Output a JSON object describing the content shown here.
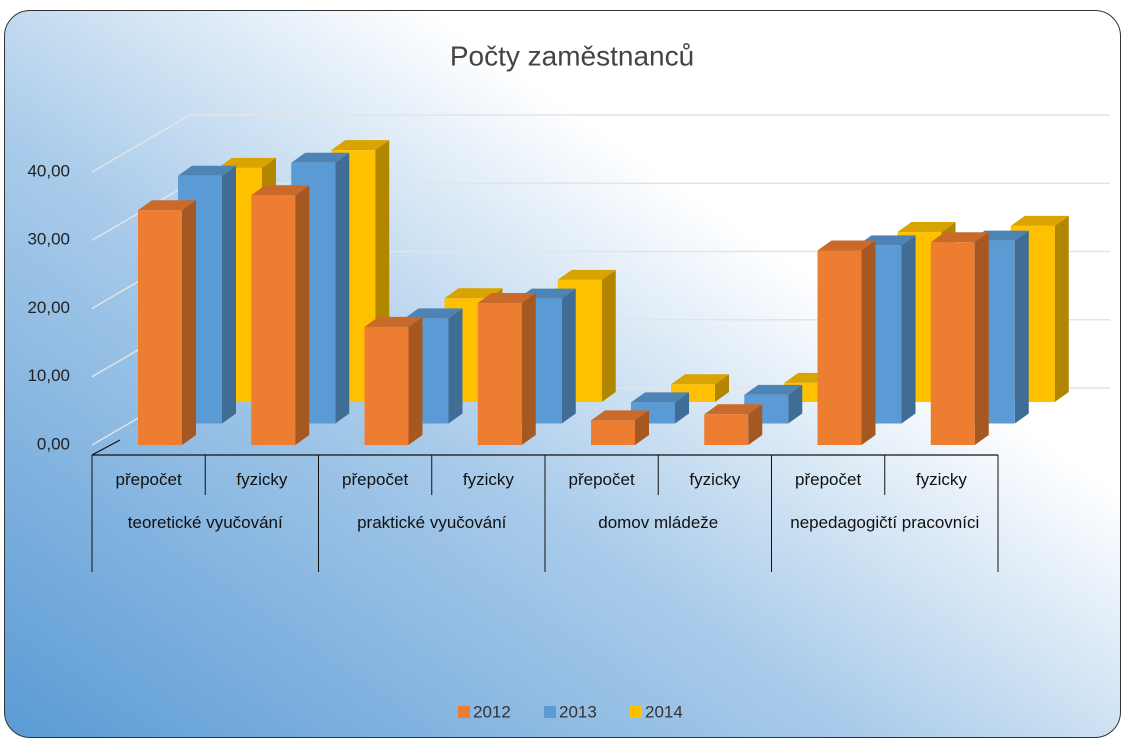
{
  "chart_data": {
    "type": "bar3d",
    "title": "Počty zaměstnanců",
    "categories": [
      "přepočet",
      "fyzicky",
      "přepočet",
      "fyzicky",
      "přepočet",
      "fyzicky",
      "přepočet",
      "fyzicky"
    ],
    "groups": [
      "teoretické vyučování",
      "praktické vyučování",
      "domov mládeže",
      "nepedagogičtí pracovníci"
    ],
    "series": [
      {
        "name": "2012",
        "color": "#ed7d31",
        "values": [
          34.4,
          36.6,
          17.3,
          20.8,
          3.6,
          4.5,
          28.5,
          29.7
        ]
      },
      {
        "name": "2013",
        "color": "#5b9bd5",
        "values": [
          36.3,
          38.2,
          15.4,
          18.3,
          3.1,
          4.2,
          26.1,
          26.8
        ]
      },
      {
        "name": "2014",
        "color": "#ffc000",
        "values": [
          34.3,
          36.9,
          15.2,
          17.9,
          2.6,
          2.8,
          24.9,
          25.8
        ]
      }
    ],
    "ylim": [
      0,
      40
    ],
    "yticks": [
      {
        "value": 0,
        "label": "0,00"
      },
      {
        "value": 10,
        "label": "10,00"
      },
      {
        "value": 20,
        "label": "20,00"
      },
      {
        "value": 30,
        "label": "30,00"
      },
      {
        "value": 40,
        "label": "40,00"
      }
    ],
    "grid": true,
    "legend": "bottom"
  }
}
